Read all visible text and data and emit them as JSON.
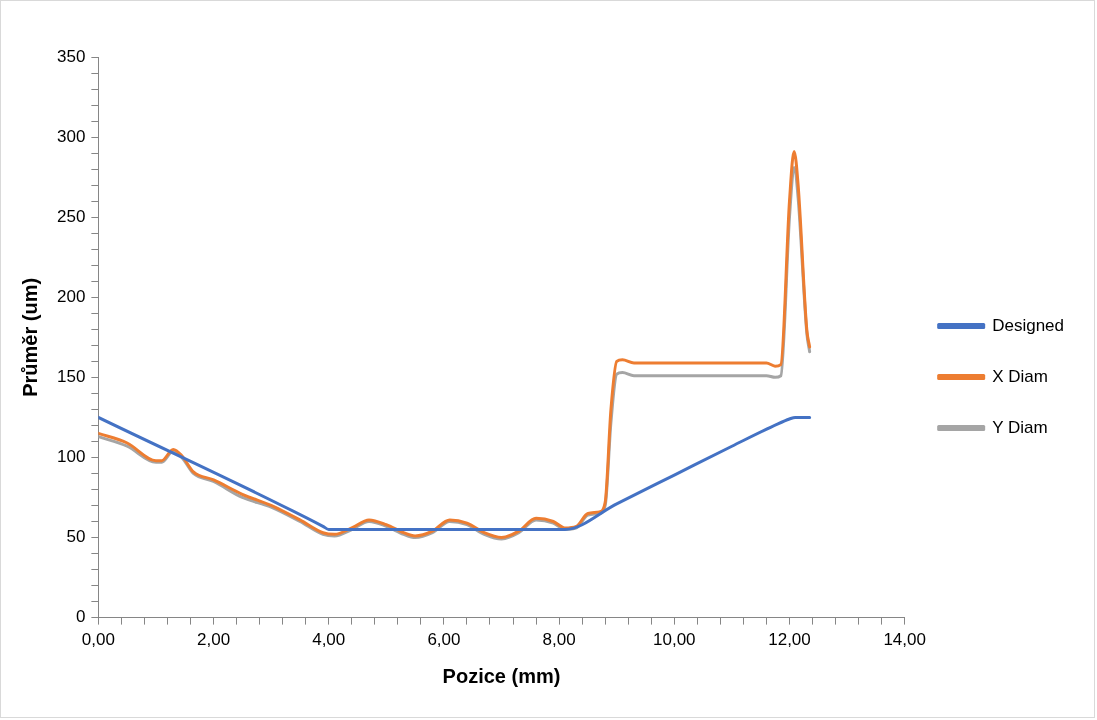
{
  "chart_data": {
    "type": "line",
    "xlabel": "Pozice (mm)",
    "ylabel": "Průměr (um)",
    "legend": "right",
    "grid": false,
    "marker": "none",
    "line_style": "solid",
    "xlim": [
      0,
      14
    ],
    "ylim": [
      0,
      350
    ],
    "xticks": [
      {
        "value": 0,
        "label": "0,00"
      },
      {
        "value": 0.4,
        "label": null
      },
      {
        "value": 0.8,
        "label": null
      },
      {
        "value": 1.2,
        "label": null
      },
      {
        "value": 1.6,
        "label": null
      },
      {
        "value": 2,
        "label": "2,00"
      },
      {
        "value": 2.4,
        "label": null
      },
      {
        "value": 2.8,
        "label": null
      },
      {
        "value": 3.2,
        "label": null
      },
      {
        "value": 3.6,
        "label": null
      },
      {
        "value": 4,
        "label": "4,00"
      },
      {
        "value": 4.4,
        "label": null
      },
      {
        "value": 4.8,
        "label": null
      },
      {
        "value": 5.2,
        "label": null
      },
      {
        "value": 5.6,
        "label": null
      },
      {
        "value": 6,
        "label": "6,00"
      },
      {
        "value": 6.4,
        "label": null
      },
      {
        "value": 6.8,
        "label": null
      },
      {
        "value": 7.2,
        "label": null
      },
      {
        "value": 7.6,
        "label": null
      },
      {
        "value": 8,
        "label": "8,00"
      },
      {
        "value": 8.4,
        "label": null
      },
      {
        "value": 8.8,
        "label": null
      },
      {
        "value": 9.2,
        "label": null
      },
      {
        "value": 9.6,
        "label": null
      },
      {
        "value": 10,
        "label": "10,00"
      },
      {
        "value": 10.4,
        "label": null
      },
      {
        "value": 10.8,
        "label": null
      },
      {
        "value": 11.2,
        "label": null
      },
      {
        "value": 11.6,
        "label": null
      },
      {
        "value": 12,
        "label": "12,00"
      },
      {
        "value": 12.4,
        "label": null
      },
      {
        "value": 12.8,
        "label": null
      },
      {
        "value": 13.2,
        "label": null
      },
      {
        "value": 13.6,
        "label": null
      },
      {
        "value": 14,
        "label": "14,00"
      }
    ],
    "yticks": [
      0,
      {
        "value": 10,
        "label": null
      },
      {
        "value": 20,
        "label": null
      },
      {
        "value": 30,
        "label": null
      },
      {
        "value": 40,
        "label": null
      },
      50,
      {
        "value": 60,
        "label": null
      },
      {
        "value": 70,
        "label": null
      },
      {
        "value": 80,
        "label": null
      },
      {
        "value": 90,
        "label": null
      },
      100,
      {
        "value": 110,
        "label": null
      },
      {
        "value": 120,
        "label": null
      },
      {
        "value": 130,
        "label": null
      },
      {
        "value": 140,
        "label": null
      },
      150,
      {
        "value": 160,
        "label": null
      },
      {
        "value": 170,
        "label": null
      },
      {
        "value": 180,
        "label": null
      },
      {
        "value": 190,
        "label": null
      },
      200,
      {
        "value": 210,
        "label": null
      },
      {
        "value": 220,
        "label": null
      },
      {
        "value": 230,
        "label": null
      },
      {
        "value": 240,
        "label": null
      },
      250,
      {
        "value": 260,
        "label": null
      },
      {
        "value": 270,
        "label": null
      },
      {
        "value": 280,
        "label": null
      },
      {
        "value": 290,
        "label": null
      },
      300,
      {
        "value": 310,
        "label": null
      },
      {
        "value": 320,
        "label": null
      },
      {
        "value": 330,
        "label": null
      },
      {
        "value": 340,
        "label": null
      },
      350
    ],
    "series": [
      {
        "name": "Designed",
        "color": "#4472c4",
        "x": [
          0,
          3.9,
          4.0,
          8.1,
          9,
          10,
          11,
          11.8,
          12.0,
          12.1,
          12.35
        ],
        "values": [
          125,
          57,
          55,
          55,
          71,
          89,
          107,
          121,
          124,
          125,
          125
        ]
      },
      {
        "name": "X Diam",
        "color": "#ed7d31",
        "x": [
          0,
          0.5,
          1.0,
          1.1,
          1.3,
          1.45,
          1.65,
          2,
          2.5,
          3,
          3.5,
          3.9,
          4.1,
          4.4,
          4.7,
          5.0,
          5.3,
          5.5,
          5.8,
          6.1,
          6.4,
          6.7,
          7.0,
          7.3,
          7.6,
          7.9,
          8.1,
          8.3,
          8.5,
          8.7,
          8.8,
          8.9,
          9.0,
          9.1,
          9.3,
          10,
          11,
          11.6,
          11.75,
          11.85,
          12.0,
          12.08,
          12.15,
          12.3,
          12.35
        ],
        "values": [
          115,
          109,
          98,
          98,
          105,
          101,
          91,
          86,
          77,
          70,
          61,
          53,
          52,
          56,
          61,
          58,
          53,
          51,
          54,
          61,
          59,
          53,
          50,
          54,
          62,
          60,
          56,
          57,
          65,
          66,
          72,
          130,
          160,
          161,
          159,
          159,
          159,
          159,
          157,
          158,
          260,
          291,
          270,
          180,
          169
        ]
      },
      {
        "name": "Y Diam",
        "color": "#a5a5a5",
        "x": [
          0,
          0.5,
          1.0,
          1.1,
          1.3,
          1.45,
          1.65,
          2,
          2.5,
          3,
          3.5,
          3.9,
          4.1,
          4.4,
          4.7,
          5.0,
          5.3,
          5.5,
          5.8,
          6.1,
          6.4,
          6.7,
          7.0,
          7.3,
          7.6,
          7.9,
          8.1,
          8.3,
          8.5,
          8.7,
          8.8,
          8.9,
          9.0,
          9.1,
          9.3,
          10,
          11,
          11.6,
          11.75,
          11.85,
          12.0,
          12.08,
          12.15,
          12.3,
          12.35
        ],
        "values": [
          113,
          107,
          97,
          97,
          104,
          100,
          90,
          85,
          75,
          69,
          60,
          52,
          51,
          55,
          60,
          57,
          52,
          50,
          53,
          60,
          58,
          52,
          49,
          53,
          61,
          59,
          55,
          56,
          64,
          65,
          70,
          122,
          152,
          153,
          151,
          151,
          151,
          151,
          150,
          151,
          250,
          281,
          262,
          178,
          166
        ]
      }
    ]
  }
}
